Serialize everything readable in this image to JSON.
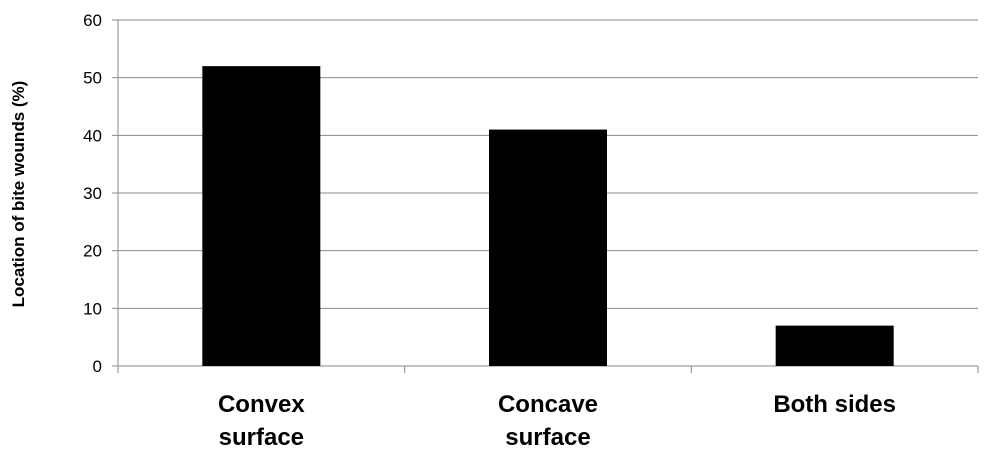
{
  "chart_data": {
    "type": "bar",
    "categories": [
      "Convex surface",
      "Concave surface",
      "Both sides"
    ],
    "category_lines": [
      [
        "Convex",
        "surface"
      ],
      [
        "Concave",
        "surface"
      ],
      [
        "Both sides"
      ]
    ],
    "values": [
      52,
      41,
      7
    ],
    "title": "",
    "xlabel": "",
    "ylabel": "Location of bite wounds (%)",
    "ylim": [
      0,
      60
    ],
    "yticks": [
      0,
      10,
      20,
      30,
      40,
      50,
      60
    ],
    "grid": true,
    "legend": "none",
    "colors": {
      "bar": "#000000",
      "grid": "#888888",
      "axis": "#888888"
    }
  }
}
